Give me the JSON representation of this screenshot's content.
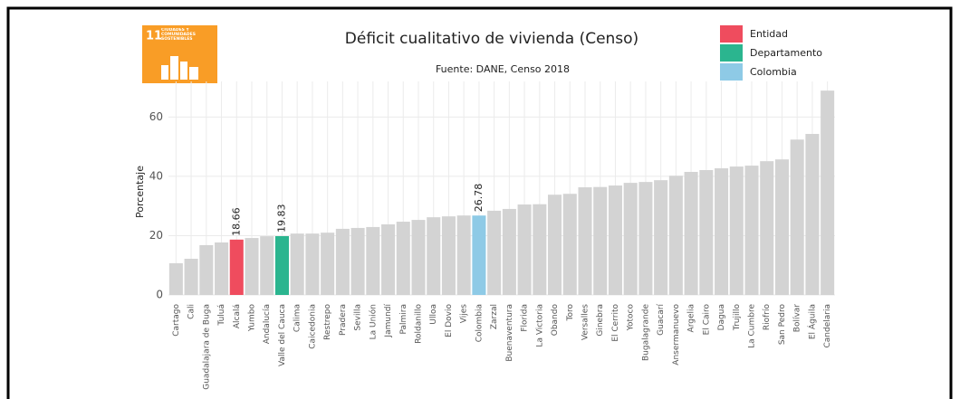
{
  "logo": {
    "number": "11",
    "text": "CIUDADES Y COMUNIDADES SOSTENIBLES"
  },
  "chart_data": {
    "type": "bar",
    "title": "Déficit cualitativo de vivienda (Censo)",
    "subtitle": "Fuente: DANE, Censo 2018",
    "y_label": "Porcentaje",
    "categories": [
      "Cartago",
      "Cali",
      "Guadalajara de Buga",
      "Tuluá",
      "Alcalá",
      "Yumbo",
      "Andalucía",
      "Valle del Cauca",
      "Calima",
      "Caicedonia",
      "Restrepo",
      "Pradera",
      "Sevilla",
      "La Unión",
      "Jamundí",
      "Palmira",
      "Roldanillo",
      "Ulloa",
      "El Dovio",
      "Vijes",
      "Colombia",
      "Zarzal",
      "Buenaventura",
      "Florida",
      "La Victoria",
      "Obando",
      "Toro",
      "Versalles",
      "Ginebra",
      "El Cerrito",
      "Yotoco",
      "Bugalagrande",
      "Guacarí",
      "Ansermanuevo",
      "Argelia",
      "El Cairo",
      "Dagua",
      "Trujillo",
      "La Cumbre",
      "Riofrío",
      "San Pedro",
      "Bolívar",
      "El Águila",
      "Candelaria"
    ],
    "values": [
      10.7,
      12.2,
      16.8,
      17.7,
      18.66,
      19.2,
      19.8,
      19.83,
      20.7,
      20.7,
      21,
      22.3,
      22.6,
      22.9,
      23.8,
      24.7,
      25.3,
      26.2,
      26.5,
      26.8,
      26.78,
      28.4,
      29,
      30.5,
      30.6,
      33.8,
      34.1,
      36.3,
      36.4,
      36.9,
      37.8,
      38.1,
      38.7,
      40.2,
      41.5,
      42.1,
      42.7,
      43.3,
      43.6,
      45.1,
      45.7,
      52.4,
      54.3,
      68.9
    ],
    "value_labels": [
      null,
      null,
      null,
      null,
      "18.66",
      null,
      null,
      "19.83",
      null,
      null,
      null,
      null,
      null,
      null,
      null,
      null,
      null,
      null,
      null,
      null,
      "26.78",
      null,
      null,
      null,
      null,
      null,
      null,
      null,
      null,
      null,
      null,
      null,
      null,
      null,
      null,
      null,
      null,
      null,
      null,
      null,
      null,
      null,
      null,
      null
    ],
    "colors": [
      "#d3d3d3",
      "#d3d3d3",
      "#d3d3d3",
      "#d3d3d3",
      "#ef4c5e",
      "#d3d3d3",
      "#d3d3d3",
      "#2bb58f",
      "#d3d3d3",
      "#d3d3d3",
      "#d3d3d3",
      "#d3d3d3",
      "#d3d3d3",
      "#d3d3d3",
      "#d3d3d3",
      "#d3d3d3",
      "#d3d3d3",
      "#d3d3d3",
      "#d3d3d3",
      "#d3d3d3",
      "#8ecae6",
      "#d3d3d3",
      "#d3d3d3",
      "#d3d3d3",
      "#d3d3d3",
      "#d3d3d3",
      "#d3d3d3",
      "#d3d3d3",
      "#d3d3d3",
      "#d3d3d3",
      "#d3d3d3",
      "#d3d3d3",
      "#d3d3d3",
      "#d3d3d3",
      "#d3d3d3",
      "#d3d3d3",
      "#d3d3d3",
      "#d3d3d3",
      "#d3d3d3",
      "#d3d3d3",
      "#d3d3d3",
      "#d3d3d3",
      "#d3d3d3",
      "#d3d3d3"
    ],
    "legend": [
      {
        "name": "Entidad",
        "color": "#ef4c5e"
      },
      {
        "name": "Departamento",
        "color": "#2bb58f"
      },
      {
        "name": "Colombia",
        "color": "#8ecae6"
      }
    ],
    "ylim": [
      0,
      72
    ],
    "yticks": [
      0,
      20,
      40,
      60
    ],
    "grid": true
  }
}
